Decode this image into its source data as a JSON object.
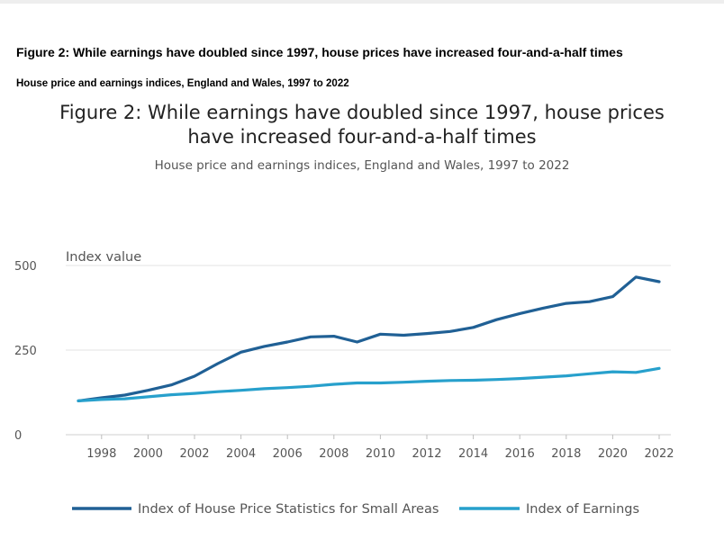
{
  "document": {
    "figure_title": "Figure 2: While earnings have doubled since 1997, house prices have increased four-and-a-half times",
    "figure_subtitle": "House price and earnings indices, England and Wales, 1997 to 2022"
  },
  "chart_data": {
    "type": "line",
    "title_lines": [
      "Figure 2: While earnings have doubled since 1997, house prices",
      "have increased four-and-a-half times"
    ],
    "subtitle": "House price and earnings indices, England and Wales, 1997 to 2022",
    "ylabel": "Index value",
    "xlabel": "",
    "ylim": [
      0,
      500
    ],
    "yticks": [
      0,
      250,
      500
    ],
    "xlim": [
      1997,
      2022
    ],
    "xticks": [
      1998,
      2000,
      2002,
      2004,
      2006,
      2008,
      2010,
      2012,
      2014,
      2016,
      2018,
      2020,
      2022
    ],
    "grid": true,
    "legend_position": "bottom",
    "x": [
      1997,
      1998,
      1999,
      2000,
      2001,
      2002,
      2003,
      2004,
      2005,
      2006,
      2007,
      2008,
      2009,
      2010,
      2011,
      2012,
      2013,
      2014,
      2015,
      2016,
      2017,
      2018,
      2019,
      2020,
      2021,
      2022
    ],
    "series": [
      {
        "name": "Index of House Price Statistics for Small Areas",
        "color": "#206095",
        "values": [
          100,
          109,
          117,
          131,
          147,
          173,
          210,
          244,
          261,
          274,
          289,
          291,
          274,
          297,
          294,
          299,
          305,
          317,
          340,
          358,
          374,
          388,
          393,
          408,
          466,
          452
        ]
      },
      {
        "name": "Index of Earnings",
        "color": "#27a0cc",
        "values": [
          100,
          104,
          106,
          112,
          118,
          122,
          127,
          131,
          136,
          139,
          143,
          149,
          153,
          153,
          155,
          158,
          160,
          161,
          163,
          166,
          170,
          174,
          180,
          186,
          184,
          196
        ]
      }
    ]
  }
}
